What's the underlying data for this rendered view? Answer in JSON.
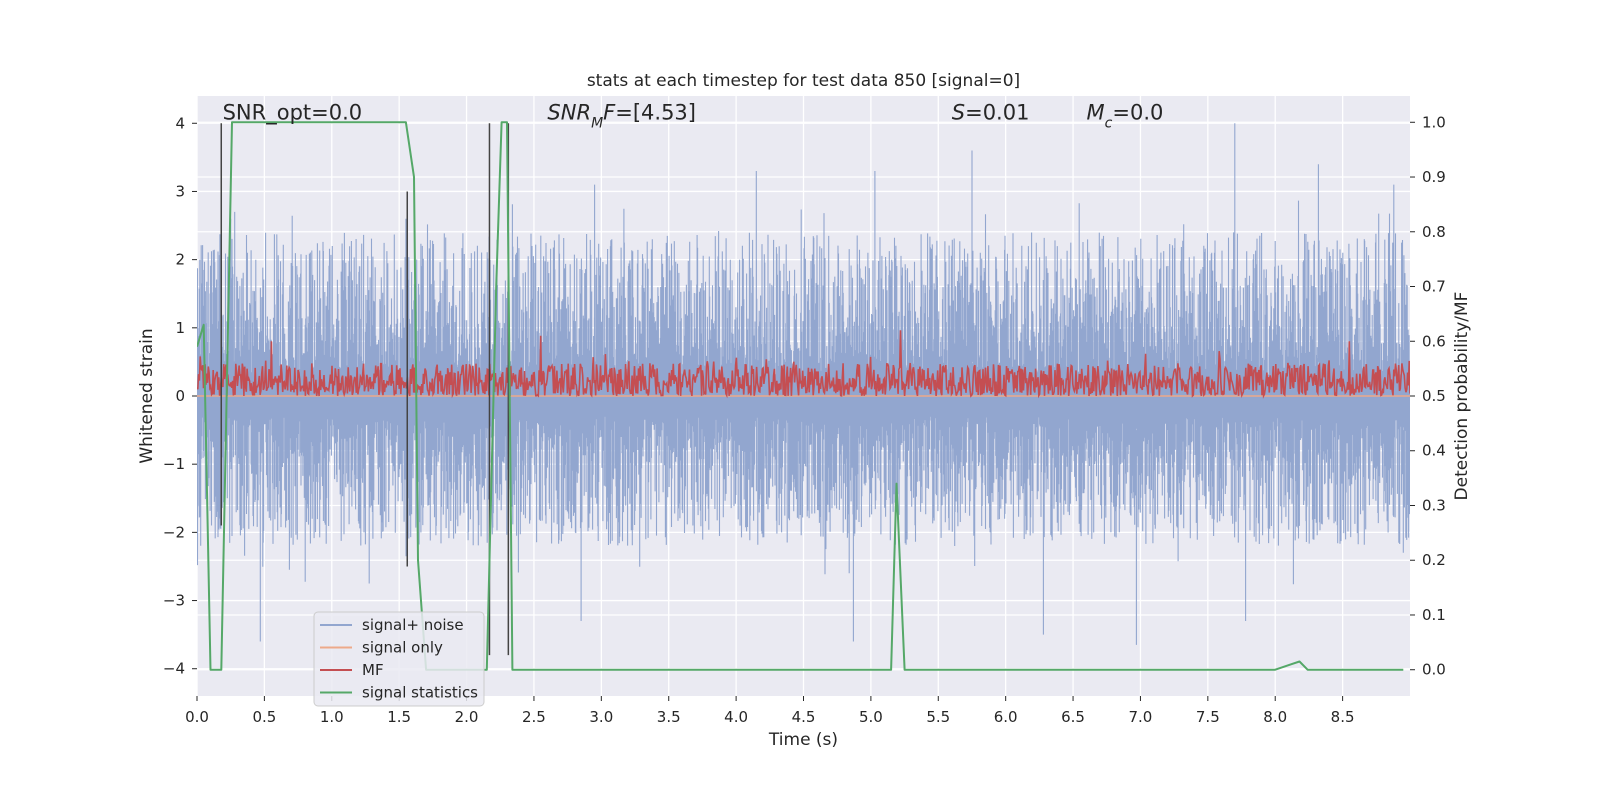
{
  "chart_data": {
    "type": "line",
    "title": "stats at each timestep for test data 850 [signal=0]",
    "xlabel": "Time (s)",
    "ylabel": "Whitened strain",
    "ylabel_right": "Detection probability/MF",
    "xlim": [
      0.0,
      9.0
    ],
    "ylim": [
      -4.4,
      4.4
    ],
    "ylim_right": [
      -0.048,
      1.048
    ],
    "x_ticks": [
      "0.0",
      "0.5",
      "1.0",
      "1.5",
      "2.0",
      "2.5",
      "3.0",
      "3.5",
      "4.0",
      "4.5",
      "5.0",
      "5.5",
      "6.0",
      "6.5",
      "7.0",
      "7.5",
      "8.0",
      "8.5"
    ],
    "y_ticks": [
      "−4",
      "−3",
      "−2",
      "−1",
      "0",
      "1",
      "2",
      "3",
      "4"
    ],
    "y_ticks_right": [
      "0.0",
      "0.1",
      "0.2",
      "0.3",
      "0.4",
      "0.5",
      "0.6",
      "0.7",
      "0.8",
      "0.9",
      "1.0"
    ],
    "grid": true,
    "legend_position": "lower left",
    "annotations": [
      {
        "key": "snr_opt",
        "parts": [
          {
            "t": "SNR_opt=0.0",
            "italic": false
          }
        ],
        "x": 0.19,
        "y": 4.1
      },
      {
        "key": "snr_mf",
        "parts": [
          {
            "t": "SNR",
            "italic": true
          },
          {
            "t": "M",
            "italic": true,
            "sub": true
          },
          {
            "t": "F",
            "italic": true
          },
          {
            "t": "=[4.53]",
            "italic": false
          }
        ],
        "x": 2.6,
        "y": 4.1
      },
      {
        "key": "s",
        "parts": [
          {
            "t": "S",
            "italic": true
          },
          {
            "t": "=0.01",
            "italic": false
          }
        ],
        "x": 5.6,
        "y": 4.1
      },
      {
        "key": "mc",
        "parts": [
          {
            "t": "M",
            "italic": true
          },
          {
            "t": "c",
            "italic": true,
            "sub": true
          },
          {
            "t": "=0.0",
            "italic": false
          }
        ],
        "x": 6.6,
        "y": 4.1
      }
    ],
    "series": [
      {
        "name": "signal+ noise",
        "color": "#92a6cf",
        "axis": "left",
        "style": "dense noise",
        "envelope": {
          "upper_typical": 2.4,
          "upper_max": 4.0,
          "lower_typical": -2.2,
          "lower_min": -3.7
        },
        "peaks": [
          [
            0.25,
            2.6
          ],
          [
            0.28,
            2.7
          ],
          [
            1.55,
            2.6
          ],
          [
            2.31,
            3.3
          ],
          [
            2.95,
            3.1
          ],
          [
            4.15,
            3.3
          ],
          [
            5.03,
            3.3
          ],
          [
            5.75,
            3.6
          ],
          [
            7.7,
            4.0
          ],
          [
            8.32,
            3.4
          ],
          [
            8.88,
            3.1
          ]
        ],
        "troughs": [
          [
            0.47,
            -3.6
          ],
          [
            2.85,
            -3.3
          ],
          [
            4.87,
            -3.6
          ],
          [
            6.28,
            -3.5
          ],
          [
            6.97,
            -3.65
          ],
          [
            7.78,
            -3.3
          ],
          [
            8.95,
            -2.3
          ]
        ]
      },
      {
        "name": "signal only",
        "color": "#eda98a",
        "axis": "left",
        "values": "zero"
      },
      {
        "name": "MF",
        "color": "#c44e52",
        "axis": "right",
        "baseline_range": [
          0.5,
          0.56
        ],
        "spikes": [
          [
            0.55,
            0.6
          ],
          [
            2.55,
            0.61
          ],
          [
            5.22,
            0.62
          ],
          [
            8.55,
            0.6
          ]
        ]
      },
      {
        "name": "signal statistics",
        "color": "#55a868",
        "axis": "right",
        "x": [
          0.0,
          0.05,
          0.1,
          0.12,
          0.18,
          0.26,
          0.3,
          0.5,
          0.8,
          1.0,
          1.3,
          1.55,
          1.61,
          1.64,
          1.7,
          1.74,
          1.85,
          2.0,
          2.15,
          2.22,
          2.26,
          2.3,
          2.34,
          2.38,
          2.42,
          2.8,
          3.5,
          4.0,
          4.5,
          5.0,
          5.15,
          5.19,
          5.25,
          5.3,
          5.45,
          6.0,
          7.0,
          8.0,
          8.12,
          8.18,
          8.24,
          8.3,
          8.5,
          8.95
        ],
        "y": [
          0.59,
          0.63,
          0.0,
          0.0,
          0.0,
          1.0,
          1.0,
          1.0,
          1.0,
          1.0,
          1.0,
          1.0,
          0.9,
          0.2,
          0.0,
          0.0,
          0.0,
          0.0,
          0.0,
          0.7,
          1.0,
          1.0,
          0.0,
          0.0,
          0.0,
          0.0,
          0.0,
          0.0,
          0.0,
          0.0,
          0.0,
          0.34,
          0.0,
          0.0,
          0.0,
          0.0,
          0.0,
          0.0,
          0.01,
          0.015,
          0.0,
          0.0,
          0.0,
          0.0
        ]
      }
    ],
    "vertical_markers": [
      {
        "x": 0.18,
        "bottom": -1.9,
        "top": 4.0
      },
      {
        "x": 1.56,
        "bottom": -2.5,
        "top": 3.0
      },
      {
        "x": 2.17,
        "bottom": -3.8,
        "top": 4.0
      },
      {
        "x": 2.31,
        "bottom": -3.8,
        "top": 4.0
      }
    ]
  }
}
